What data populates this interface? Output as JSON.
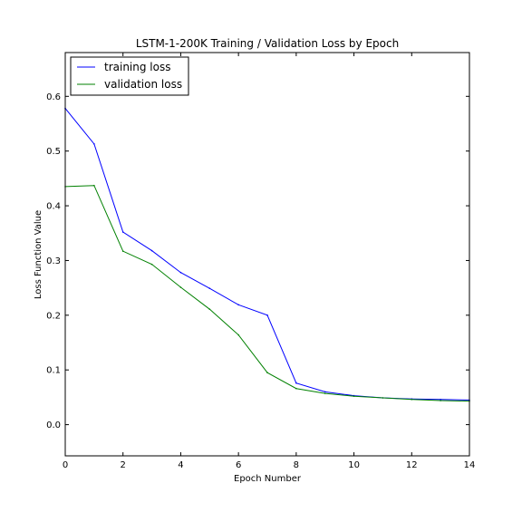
{
  "chart_data": {
    "type": "line",
    "title": "LSTM-1-200K Training / Validation Loss by Epoch",
    "xlabel": "Epoch Number",
    "ylabel": "Loss Function Value",
    "xlim": [
      0,
      14
    ],
    "ylim": [
      -0.057,
      0.68
    ],
    "x_ticks": [
      0,
      2,
      4,
      6,
      8,
      10,
      12,
      14
    ],
    "y_ticks": [
      0.0,
      0.1,
      0.2,
      0.3,
      0.4,
      0.5,
      0.6
    ],
    "x_tick_labels": [
      "0",
      "2",
      "4",
      "6",
      "8",
      "10",
      "12",
      "14"
    ],
    "y_tick_labels": [
      "0.0",
      "0.1",
      "0.2",
      "0.3",
      "0.4",
      "0.5",
      "0.6"
    ],
    "grid": false,
    "legend_position": "top-left",
    "x": [
      0,
      1,
      2,
      3,
      4,
      5,
      6,
      7,
      8,
      9,
      10,
      11,
      12,
      13,
      14
    ],
    "series": [
      {
        "name": "training loss",
        "color": "#0000ff",
        "values": [
          0.578,
          0.513,
          0.352,
          0.318,
          0.278,
          0.249,
          0.219,
          0.2,
          0.076,
          0.06,
          0.053,
          0.049,
          0.047,
          0.046,
          0.045
        ]
      },
      {
        "name": "validation loss",
        "color": "#008000",
        "values": [
          0.435,
          0.437,
          0.317,
          0.293,
          0.251,
          0.211,
          0.164,
          0.095,
          0.066,
          0.057,
          0.052,
          0.049,
          0.046,
          0.044,
          0.043
        ]
      }
    ]
  }
}
